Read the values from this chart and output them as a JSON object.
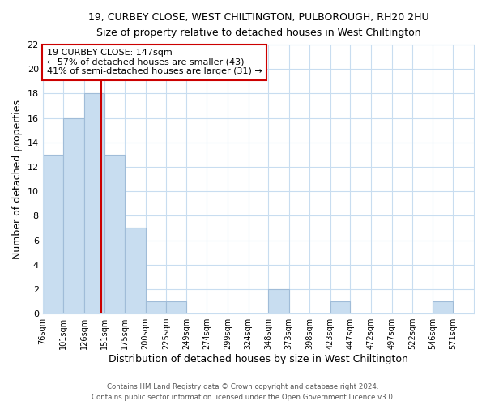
{
  "title1": "19, CURBEY CLOSE, WEST CHILTINGTON, PULBOROUGH, RH20 2HU",
  "title2": "Size of property relative to detached houses in West Chiltington",
  "xlabel": "Distribution of detached houses by size in West Chiltington",
  "ylabel": "Number of detached properties",
  "bar_color": "#c8ddf0",
  "bar_edge_color": "#a0bcd8",
  "categories": [
    "76sqm",
    "101sqm",
    "126sqm",
    "151sqm",
    "175sqm",
    "200sqm",
    "225sqm",
    "249sqm",
    "274sqm",
    "299sqm",
    "324sqm",
    "348sqm",
    "373sqm",
    "398sqm",
    "423sqm",
    "447sqm",
    "472sqm",
    "497sqm",
    "522sqm",
    "546sqm",
    "571sqm"
  ],
  "values": [
    13,
    16,
    18,
    13,
    7,
    1,
    1,
    0,
    0,
    0,
    0,
    2,
    0,
    0,
    1,
    0,
    0,
    0,
    0,
    1,
    0
  ],
  "bin_edges": [
    76,
    101,
    126,
    151,
    175,
    200,
    225,
    249,
    274,
    299,
    324,
    348,
    373,
    398,
    423,
    447,
    472,
    497,
    522,
    546,
    571,
    596
  ],
  "vline_x": 147,
  "vline_color": "#cc0000",
  "ylim": [
    0,
    22
  ],
  "yticks": [
    0,
    2,
    4,
    6,
    8,
    10,
    12,
    14,
    16,
    18,
    20,
    22
  ],
  "annotation_text": "19 CURBEY CLOSE: 147sqm\n← 57% of detached houses are smaller (43)\n41% of semi-detached houses are larger (31) →",
  "annotation_box_color": "white",
  "annotation_box_edge_color": "#cc0000",
  "footer1": "Contains HM Land Registry data © Crown copyright and database right 2024.",
  "footer2": "Contains public sector information licensed under the Open Government Licence v3.0.",
  "background_color": "white",
  "grid_color": "#c8ddf0"
}
